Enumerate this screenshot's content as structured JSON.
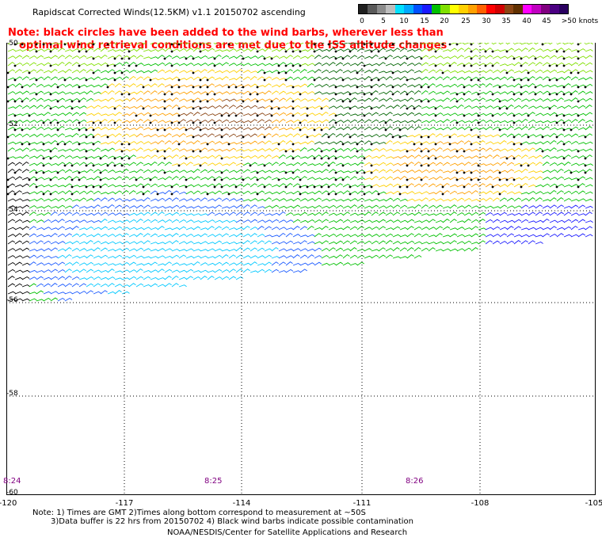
{
  "title": "Rapidscat Corrected Winds(12.5KM) v1.1 20150702 ascending",
  "note_line1": "Note: black circles have been added to the wind barbs, wherever less than",
  "note_line2": "optimal wind retrieval conditions are met due to the ISS altitude changes",
  "colorbar": {
    "colors": [
      "#202020",
      "#5a5a5a",
      "#8c8c8c",
      "#bdbdbd",
      "#00e0ff",
      "#00a8ff",
      "#0050ff",
      "#1a1aff",
      "#00c000",
      "#80e000",
      "#ffff00",
      "#ffd000",
      "#ffa000",
      "#ff6000",
      "#ff0000",
      "#d00000",
      "#8b4513",
      "#603000",
      "#ff00ff",
      "#c000c0",
      "#800080",
      "#4b0082",
      "#2a0060"
    ],
    "labels": [
      "0",
      "5",
      "10",
      "15",
      "20",
      "25",
      "30",
      "35",
      "40",
      "45",
      ">50 knots"
    ]
  },
  "lon_labels": [
    "-120",
    "-117",
    "-114",
    "-111",
    "-108",
    "-105"
  ],
  "lat_labels": [
    "-50",
    "-52",
    "-54",
    "-56",
    "-58",
    "-60"
  ],
  "time_labels": [
    "8:24",
    "8:25",
    "8:26"
  ],
  "footer_line1": "Note: 1) Times are GMT 2)Times along bottom correspond to measurement at ~50S",
  "footer_line2": "3)Data buffer is 22 hrs from 20150702 4) Black wind barbs indicate possible contamination",
  "footer_line3": "NOAA/NESDIS/Center for Satellite Applications and Research"
}
